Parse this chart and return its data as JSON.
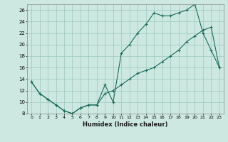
{
  "xlabel": "Humidex (Indice chaleur)",
  "ylabel": "",
  "background_color": "#cce8e0",
  "grid_color": "#9cc8bc",
  "line_color": "#1a6b5a",
  "xlim": [
    -0.5,
    23.5
  ],
  "ylim": [
    8,
    27
  ],
  "yticks": [
    8,
    10,
    12,
    14,
    16,
    18,
    20,
    22,
    24,
    26
  ],
  "xticks": [
    0,
    1,
    2,
    3,
    4,
    5,
    6,
    7,
    8,
    9,
    10,
    11,
    12,
    13,
    14,
    15,
    16,
    17,
    18,
    19,
    20,
    21,
    22,
    23
  ],
  "line1_x": [
    0,
    1,
    2,
    3,
    4,
    5,
    6,
    7,
    8,
    9,
    10,
    11,
    12,
    13,
    14,
    15,
    16,
    17,
    18,
    19,
    20,
    21,
    22,
    23
  ],
  "line1_y": [
    13.5,
    11.5,
    10.5,
    9.5,
    8.5,
    8.0,
    9.0,
    9.5,
    9.5,
    13.0,
    10.0,
    18.5,
    20.0,
    22.0,
    23.5,
    25.5,
    25.0,
    25.0,
    25.5,
    26.0,
    27.0,
    22.0,
    19.0,
    16.0
  ],
  "line2_x": [
    0,
    1,
    2,
    3,
    4,
    5,
    6,
    7,
    8,
    9,
    10,
    11,
    12,
    13,
    14,
    15,
    16,
    17,
    18,
    19,
    20,
    21,
    22,
    23
  ],
  "line2_y": [
    13.5,
    11.5,
    10.5,
    9.5,
    8.5,
    8.0,
    9.0,
    9.5,
    9.5,
    11.5,
    12.0,
    13.0,
    14.0,
    15.0,
    15.5,
    16.0,
    17.0,
    18.0,
    19.0,
    20.5,
    21.5,
    22.5,
    23.0,
    16.0
  ]
}
